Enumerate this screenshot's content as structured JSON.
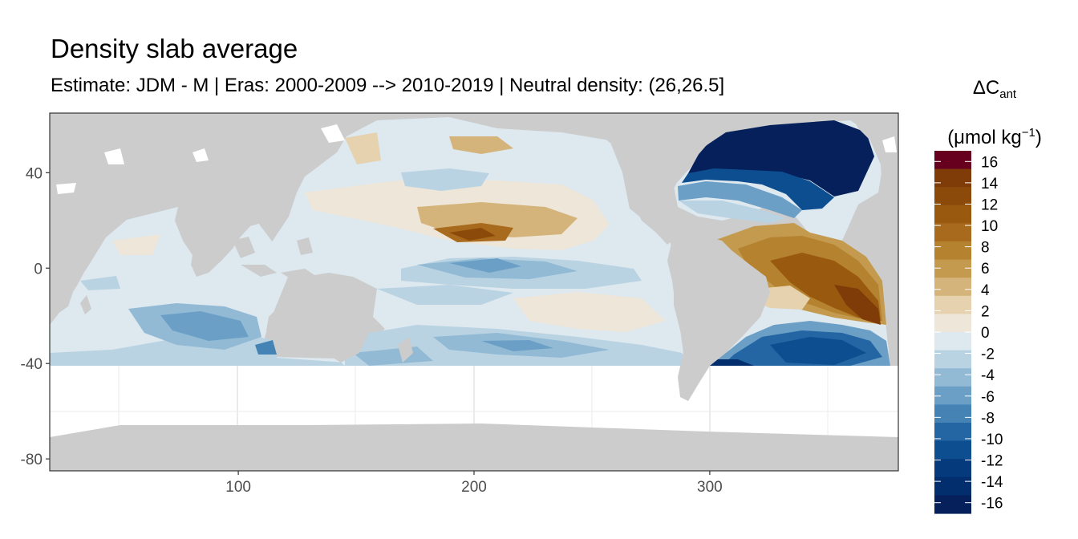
{
  "title": "Density slab average",
  "subtitle": "Estimate: JDM - M | Eras: 2000-2009 --> 2010-2019 | Neutral density: (26,26.5]",
  "legend": {
    "symbol": "ΔC",
    "subscript": "ant",
    "unit_prefix": "(μmol kg",
    "unit_superscript": "−1",
    "unit_suffix": ")",
    "labels": [
      "16",
      "14",
      "12",
      "10",
      "8",
      "6",
      "4",
      "2",
      "0",
      "-2",
      "-4",
      "-6",
      "-8",
      "-10",
      "-12",
      "-14",
      "-16"
    ],
    "colors": [
      "#67001f",
      "#7f3b08",
      "#8c4a0a",
      "#995a0f",
      "#a86b1d",
      "#b5832f",
      "#c49a4f",
      "#d4b47a",
      "#e6d2ae",
      "#eee6d9",
      "#dde8ef",
      "#b9d3e3",
      "#92bad5",
      "#6b9fc6",
      "#4683b5",
      "#2366a3",
      "#0c4e8f",
      "#053a7c",
      "#032e6e",
      "#05205a"
    ]
  },
  "chart_data": {
    "type": "heatmap",
    "title": "Density slab average",
    "subtitle": "Estimate: JDM - M | Eras: 2000-2009 --> 2010-2019 | Neutral density: (26,26.5]",
    "xlabel": "",
    "ylabel": "",
    "x_ticks": [
      100,
      200,
      300
    ],
    "y_ticks": [
      40,
      0,
      -40,
      -80
    ],
    "xlim": [
      20,
      380
    ],
    "ylim": [
      -85,
      65
    ],
    "colorbar_range": [
      -17,
      17
    ],
    "colorbar_step": 2,
    "land_color": "#cccccc",
    "grid": true
  }
}
